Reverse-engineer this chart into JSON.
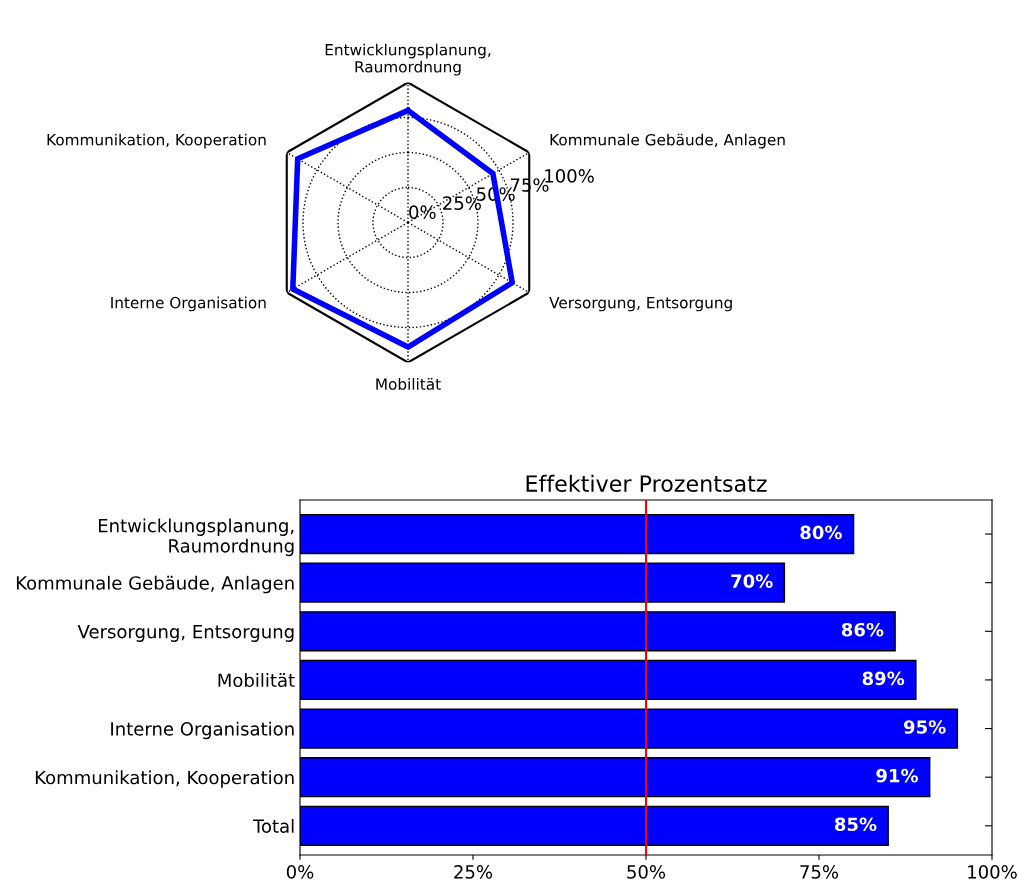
{
  "chart_data": [
    {
      "type": "radar",
      "categories": [
        "Entwicklungsplanung,\nRaumordnung",
        "Kommunale Gebäude, Anlagen",
        "Versorgung, Entsorgung",
        "Mobilität",
        "Interne Organisation",
        "Kommunikation, Kooperation"
      ],
      "series": [
        {
          "color": "#0000ff",
          "values": [
            80,
            70,
            86,
            89,
            95,
            91
          ]
        }
      ],
      "ylim": [
        0,
        100
      ],
      "yticks": [
        {
          "value": 0,
          "label": "0%"
        },
        {
          "value": 25,
          "label": "25%"
        },
        {
          "value": 50,
          "label": "50%"
        },
        {
          "value": 75,
          "label": "75%"
        },
        {
          "value": 100,
          "label": "100%"
        }
      ],
      "grid": true,
      "line_style": "solid",
      "marker": "none"
    },
    {
      "type": "bar",
      "orientation": "horizontal",
      "title": "Effektiver Prozentsatz",
      "categories": [
        "Entwicklungsplanung,\nRaumordnung",
        "Kommunale Gebäude, Anlagen",
        "Versorgung, Entsorgung",
        "Mobilität",
        "Interne Organisation",
        "Kommunikation, Kooperation",
        "Total"
      ],
      "values": [
        80,
        70,
        86,
        89,
        95,
        91,
        85
      ],
      "color": "#0000ff",
      "value_labels": [
        "80%",
        "70%",
        "86%",
        "89%",
        "95%",
        "91%",
        "85%"
      ],
      "xlim": [
        0,
        100
      ],
      "xticks": [
        {
          "value": 0,
          "label": "0%"
        },
        {
          "value": 25,
          "label": "25%"
        },
        {
          "value": 50,
          "label": "50%"
        },
        {
          "value": 75,
          "label": "75%"
        },
        {
          "value": 100,
          "label": "100%"
        }
      ],
      "ref_lines": [
        {
          "axis": "x",
          "value": 50,
          "color": "#ff0000"
        }
      ],
      "grid": false
    }
  ]
}
